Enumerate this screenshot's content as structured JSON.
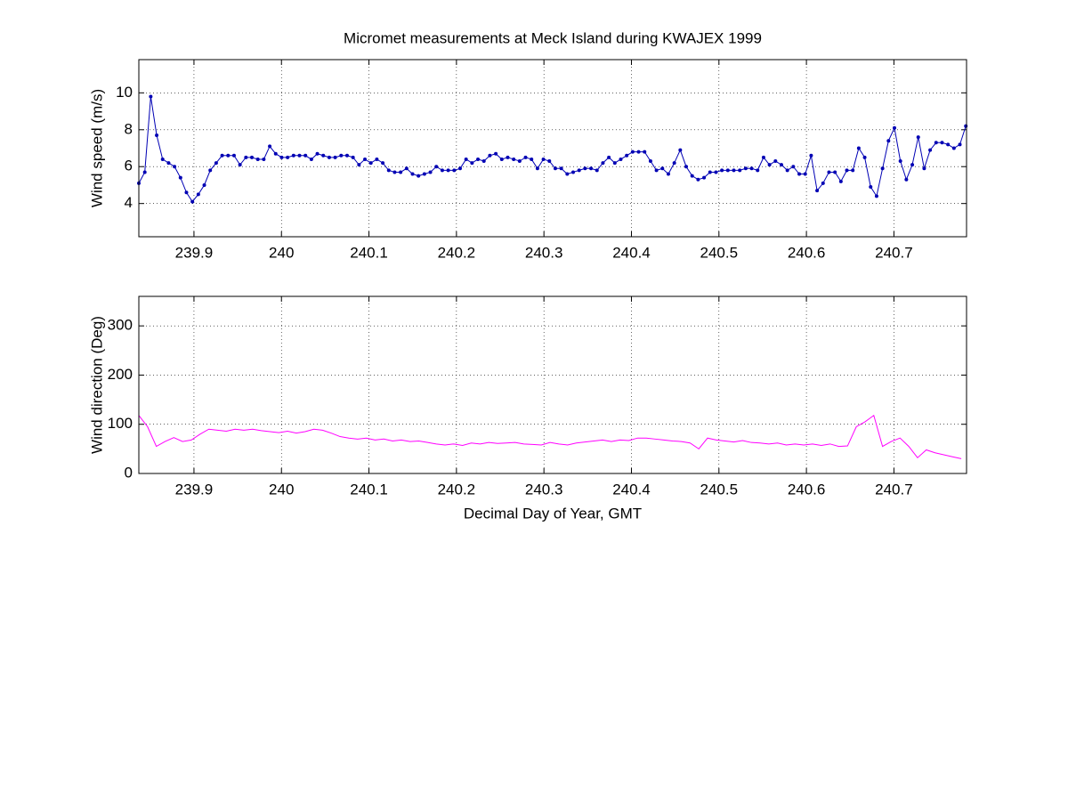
{
  "chart_data": [
    {
      "type": "line",
      "title": "Micromet measurements at Meck Island during KWAJEX 1999",
      "ylabel": "Wind speed (m/s)",
      "xlim": [
        239.837,
        240.783
      ],
      "xticks": [
        239.9,
        240,
        240.1,
        240.2,
        240.3,
        240.4,
        240.5,
        240.6,
        240.7
      ],
      "ylim": [
        2.2,
        11.8
      ],
      "yticks": [
        4,
        6,
        8,
        10
      ],
      "grid": true,
      "marker": "dot",
      "x": [
        239.837,
        239.8438,
        239.8506,
        239.8574,
        239.8642,
        239.871,
        239.8778,
        239.8846,
        239.8914,
        239.8982,
        239.905,
        239.9118,
        239.9186,
        239.9254,
        239.9322,
        239.939,
        239.9458,
        239.9526,
        239.9594,
        239.9662,
        239.973,
        239.9798,
        239.9866,
        239.9934,
        240.0002,
        240.007,
        240.0138,
        240.0206,
        240.0274,
        240.0342,
        240.041,
        240.0478,
        240.0546,
        240.0614,
        240.0682,
        240.075,
        240.0818,
        240.0886,
        240.0954,
        240.1022,
        240.109,
        240.1158,
        240.1226,
        240.1294,
        240.1362,
        240.143,
        240.1498,
        240.1566,
        240.1634,
        240.1702,
        240.177,
        240.1838,
        240.1906,
        240.1974,
        240.2042,
        240.211,
        240.2178,
        240.2246,
        240.2314,
        240.2382,
        240.245,
        240.2518,
        240.2586,
        240.2654,
        240.2722,
        240.279,
        240.2858,
        240.2926,
        240.2994,
        240.3062,
        240.313,
        240.3198,
        240.3266,
        240.3334,
        240.3402,
        240.347,
        240.3538,
        240.3606,
        240.3674,
        240.3742,
        240.381,
        240.3878,
        240.3946,
        240.4014,
        240.4082,
        240.415,
        240.4218,
        240.4286,
        240.4354,
        240.4422,
        240.449,
        240.4558,
        240.4626,
        240.4694,
        240.4762,
        240.483,
        240.4898,
        240.4966,
        240.5034,
        240.5102,
        240.517,
        240.5238,
        240.5306,
        240.5374,
        240.5442,
        240.551,
        240.5578,
        240.5646,
        240.5714,
        240.5782,
        240.585,
        240.5918,
        240.5986,
        240.6054,
        240.6122,
        240.619,
        240.6258,
        240.6326,
        240.6394,
        240.6462,
        240.653,
        240.6598,
        240.6666,
        240.6734,
        240.6802,
        240.687,
        240.6938,
        240.7006,
        240.7074,
        240.7142,
        240.721,
        240.7278,
        240.7346,
        240.7414,
        240.7482,
        240.755,
        240.7618,
        240.7686,
        240.7754,
        240.7822
      ],
      "series": [
        {
          "color": "#0000b4",
          "values": [
            5.1,
            5.7,
            9.8,
            7.7,
            6.4,
            6.2,
            6.0,
            5.4,
            4.6,
            4.1,
            4.5,
            5.0,
            5.8,
            6.2,
            6.6,
            6.6,
            6.6,
            6.1,
            6.5,
            6.5,
            6.4,
            6.4,
            7.1,
            6.7,
            6.5,
            6.5,
            6.6,
            6.6,
            6.6,
            6.4,
            6.7,
            6.6,
            6.5,
            6.5,
            6.6,
            6.6,
            6.5,
            6.1,
            6.4,
            6.2,
            6.4,
            6.2,
            5.8,
            5.7,
            5.7,
            5.9,
            5.6,
            5.5,
            5.6,
            5.7,
            6.0,
            5.8,
            5.8,
            5.8,
            5.9,
            6.4,
            6.2,
            6.4,
            6.3,
            6.6,
            6.7,
            6.4,
            6.5,
            6.4,
            6.3,
            6.5,
            6.4,
            5.9,
            6.4,
            6.3,
            5.9,
            5.9,
            5.6,
            5.7,
            5.8,
            5.9,
            5.9,
            5.8,
            6.2,
            6.5,
            6.2,
            6.4,
            6.6,
            6.8,
            6.8,
            6.8,
            6.3,
            5.8,
            5.9,
            5.6,
            6.2,
            6.9,
            6.0,
            5.5,
            5.3,
            5.4,
            5.7,
            5.7,
            5.8,
            5.8,
            5.8,
            5.8,
            5.9,
            5.9,
            5.8,
            6.5,
            6.1,
            6.3,
            6.1,
            5.8,
            6.0,
            5.6,
            5.6,
            6.6,
            4.7,
            5.1,
            5.7,
            5.7,
            5.2,
            5.8,
            5.8,
            7.0,
            6.5,
            4.9,
            4.4,
            5.9,
            7.4,
            8.1,
            6.3,
            5.3,
            6.1,
            7.6,
            5.9,
            6.9,
            7.3,
            7.3,
            7.2,
            7.0,
            7.2,
            8.2
          ]
        }
      ]
    },
    {
      "type": "line",
      "ylabel": "Wind direction (Deg)",
      "xlabel": "Decimal Day of Year, GMT",
      "xlim": [
        239.837,
        240.783
      ],
      "xticks": [
        239.9,
        240,
        240.1,
        240.2,
        240.3,
        240.4,
        240.5,
        240.6,
        240.7
      ],
      "ylim": [
        0,
        360
      ],
      "yticks": [
        0,
        100,
        200,
        300
      ],
      "grid": true,
      "x": [
        239.837,
        239.847,
        239.857,
        239.867,
        239.877,
        239.887,
        239.897,
        239.907,
        239.917,
        239.927,
        239.937,
        239.947,
        239.957,
        239.967,
        239.977,
        239.987,
        239.997,
        240.007,
        240.017,
        240.027,
        240.037,
        240.047,
        240.057,
        240.067,
        240.077,
        240.087,
        240.097,
        240.107,
        240.117,
        240.127,
        240.137,
        240.147,
        240.157,
        240.167,
        240.177,
        240.187,
        240.197,
        240.207,
        240.217,
        240.227,
        240.237,
        240.247,
        240.257,
        240.267,
        240.277,
        240.287,
        240.297,
        240.307,
        240.317,
        240.327,
        240.337,
        240.347,
        240.357,
        240.367,
        240.377,
        240.387,
        240.397,
        240.407,
        240.417,
        240.427,
        240.437,
        240.447,
        240.457,
        240.467,
        240.477,
        240.487,
        240.497,
        240.507,
        240.517,
        240.527,
        240.537,
        240.547,
        240.557,
        240.567,
        240.577,
        240.587,
        240.597,
        240.607,
        240.617,
        240.627,
        240.637,
        240.647,
        240.657,
        240.667,
        240.677,
        240.687,
        240.697,
        240.707,
        240.717,
        240.727,
        240.737,
        240.747,
        240.757,
        240.767,
        240.777
      ],
      "series": [
        {
          "color": "#ff00ff",
          "values": [
            118,
            95,
            55,
            65,
            73,
            65,
            68,
            80,
            90,
            88,
            86,
            90,
            88,
            90,
            87,
            85,
            83,
            86,
            82,
            85,
            90,
            88,
            82,
            75,
            72,
            70,
            72,
            68,
            70,
            66,
            68,
            65,
            66,
            63,
            60,
            58,
            60,
            57,
            62,
            60,
            63,
            61,
            62,
            63,
            60,
            59,
            58,
            63,
            60,
            58,
            62,
            64,
            66,
            68,
            65,
            68,
            67,
            72,
            72,
            70,
            68,
            66,
            65,
            62,
            50,
            72,
            68,
            66,
            64,
            67,
            63,
            62,
            60,
            62,
            58,
            60,
            58,
            60,
            57,
            60,
            55,
            56,
            95,
            105,
            118,
            55,
            65,
            72,
            55,
            32,
            48,
            42,
            38,
            34,
            30
          ]
        }
      ]
    }
  ]
}
